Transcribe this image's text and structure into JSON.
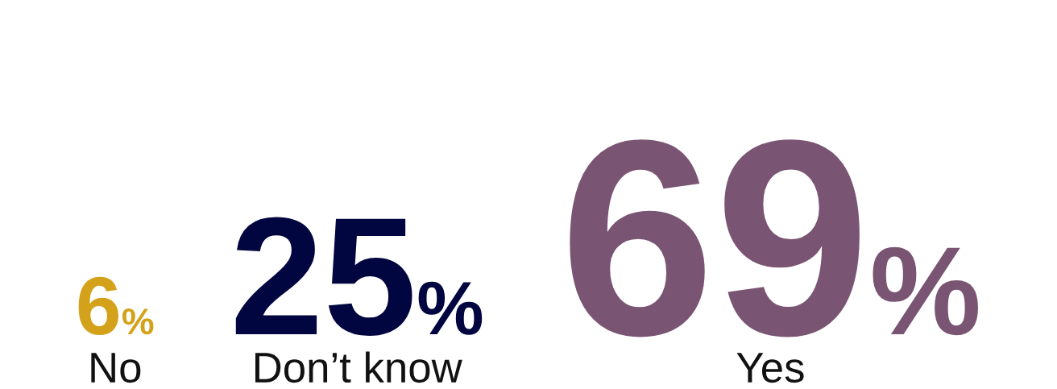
{
  "chart_data": {
    "type": "other",
    "categories": [
      "No",
      "Don’t know",
      "Yes"
    ],
    "values": [
      6,
      25,
      69
    ],
    "value_labels": [
      "6%",
      "25%",
      "69%"
    ],
    "colors": [
      "#d4a21a",
      "#020640",
      "#7a5473"
    ]
  }
}
